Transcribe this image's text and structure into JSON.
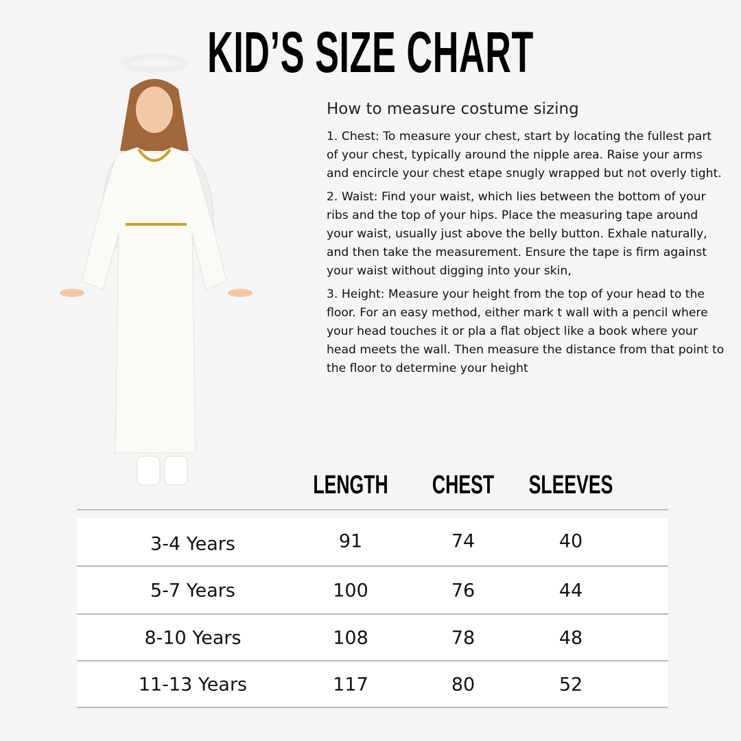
{
  "title": "KID’S SIZE CHART",
  "guide": {
    "heading": "How to measure costume sizing",
    "items": [
      "1. Chest: To measure your chest, start by locating the fullest part of your chest, typically around the nipple area. Raise your arms and encircle your chest etape snugly wrapped but not overly tight.",
      "2. Waist: Find your waist, which lies between the bottom of your ribs and the top of your hips. Place the measuring tape around your waist, usually just above the belly button. Exhale naturally, and then take the measurement. Ensure the tape is firm against your waist without digging into your skin,",
      "3. Height: Measure your height from the top of your head to the floor. For an easy method, either mark t wall with a pencil where your head touches it or pla a flat object like a book where your head meets the wall. Then measure the distance from that point to the floor to determine your height"
    ]
  },
  "table": {
    "headers": [
      "LENGTH",
      "CHEST",
      "SLEEVES"
    ],
    "rows": [
      {
        "size": "3-4 Years",
        "length": "91",
        "chest": "74",
        "sleeves": "40"
      },
      {
        "size": "5-7 Years",
        "length": "100",
        "chest": "76",
        "sleeves": "44"
      },
      {
        "size": "8-10 Years",
        "length": "108",
        "chest": "78",
        "sleeves": "48"
      },
      {
        "size": "11-13 Years",
        "length": "117",
        "chest": "80",
        "sleeves": "52"
      }
    ]
  },
  "colors": {
    "background": "#f5f5f5",
    "row": "#ffffff",
    "divider": "#bdbdbd",
    "trim": "#c9a227"
  }
}
